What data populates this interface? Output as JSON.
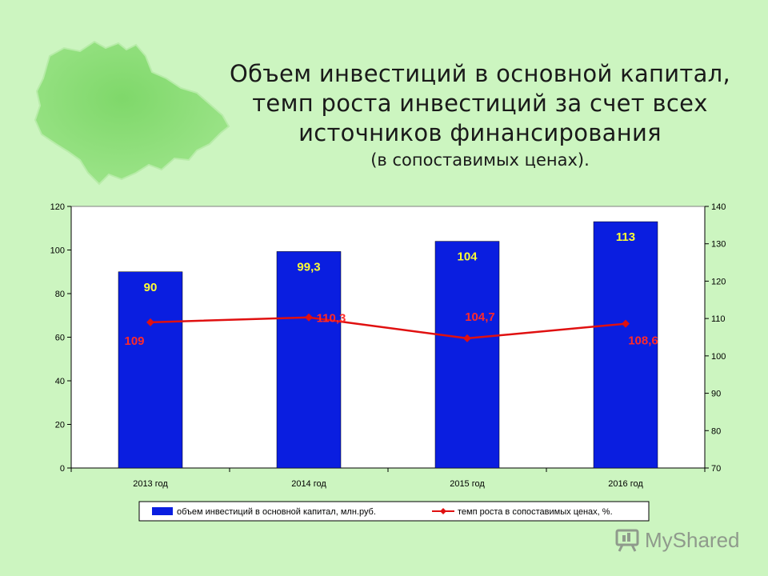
{
  "title": {
    "lines": [
      "Объем инвестиций в основной капитал,",
      "темп роста инвестиций за счет всех",
      "источников финансирования"
    ],
    "subtitle": "(в сопоставимых ценах)."
  },
  "colors": {
    "background": "#ccf5c0",
    "bar": "#0a1ee0",
    "line": "#e01010",
    "map_fill": "#6fcf5a"
  },
  "chart_data": {
    "type": "bar",
    "categories": [
      "2013 год",
      "2014 год",
      "2015 год",
      "2016 год"
    ],
    "series": [
      {
        "name": "объем инвестиций в основной капитал, млн.руб.",
        "type": "bar",
        "axis": "left",
        "values": [
          90,
          99.3,
          104,
          113
        ],
        "labels": [
          "90",
          "99,3",
          "104",
          "113"
        ]
      },
      {
        "name": "темп роста в сопоставимых ценах, %.",
        "type": "line",
        "axis": "right",
        "values": [
          109,
          110.3,
          104.7,
          108.6
        ],
        "labels": [
          "109",
          "110,3",
          "104,7",
          "108,6"
        ]
      }
    ],
    "y_left": {
      "min": 0,
      "max": 120,
      "ticks": [
        0,
        20,
        40,
        60,
        80,
        100,
        120
      ]
    },
    "y_right": {
      "min": 70,
      "max": 140,
      "ticks": [
        70,
        80,
        90,
        100,
        110,
        120,
        130,
        140
      ]
    },
    "grid": false,
    "legend_position": "bottom"
  },
  "watermark": "MyShared"
}
